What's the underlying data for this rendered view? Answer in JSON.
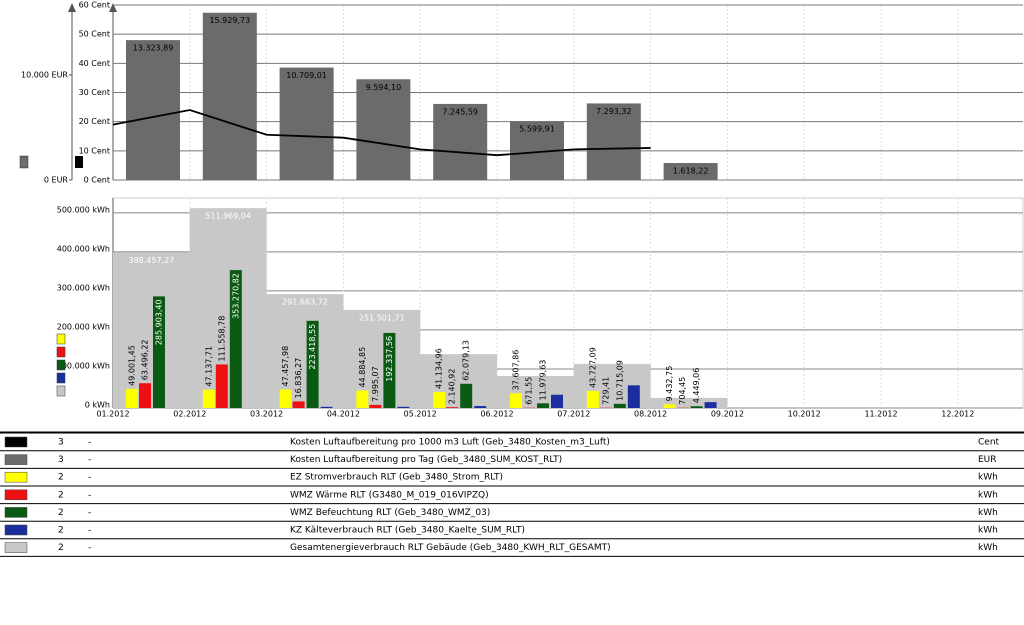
{
  "chart_data": [
    {
      "type": "bar",
      "ylim": [
        0,
        60
      ],
      "yticks": [
        {
          "value": 0,
          "label": "0 Cent"
        },
        {
          "value": 10,
          "label": "10 Cent"
        },
        {
          "value": 20,
          "label": "20 Cent"
        },
        {
          "value": 30,
          "label": "30 Cent"
        },
        {
          "value": 40,
          "label": "40 Cent"
        },
        {
          "value": 50,
          "label": "50 Cent"
        },
        {
          "value": 60,
          "label": "60 Cent"
        }
      ],
      "y2lim": [
        0,
        16667
      ],
      "y2ticks": [
        {
          "value": 0,
          "label": "0 EUR"
        },
        {
          "value": 10000,
          "label": "10.000 EUR"
        }
      ],
      "grid": true,
      "series": [
        {
          "name": "Kosten Luftaufbereitung pro Tag (Geb_3480_SUM_KOST_RLT)",
          "type": "bar",
          "axis": "y2",
          "color": "#6b6b6b",
          "values": [
            13323.89,
            15929.73,
            10709.01,
            9594.1,
            7245.59,
            5599.91,
            7293.32,
            1618.22
          ],
          "value_labels": [
            "13.323,89",
            "15.929,73",
            "10.709,01",
            "9.594,10",
            "7.245,59",
            "5.599,91",
            "7.293,32",
            "1.618,22"
          ]
        },
        {
          "name": "Kosten Luftaufbereitung pro 1000 m3 Luft (Geb_3480_Kosten_m3_Luft)",
          "type": "line",
          "color": "#000000",
          "values": [
            19,
            24,
            15.5,
            14.5,
            10.5,
            8.5,
            10.5,
            11
          ]
        }
      ]
    },
    {
      "type": "bar",
      "categories": [
        "01.2012",
        "02.2012",
        "03.2012",
        "04.2012",
        "05.2012",
        "06.2012",
        "07.2012",
        "08.2012",
        "09.2012",
        "10.2012",
        "11.2012",
        "12.2012"
      ],
      "ylim": [
        0,
        538000
      ],
      "yticks": [
        {
          "value": 0,
          "label": "0 kWh"
        },
        {
          "value": 100000,
          "label": "100.000 kWh"
        },
        {
          "value": 200000,
          "label": "200.000 kWh"
        },
        {
          "value": 300000,
          "label": "300.000 kWh"
        },
        {
          "value": 400000,
          "label": "400.000 kWh"
        },
        {
          "value": 500000,
          "label": "500.000 kWh"
        }
      ],
      "grid": true,
      "series": [
        {
          "name": "Gesamtenergieverbrauch RLT Gebäude (Geb_3480_KWH_RLT_GESAMT)",
          "color": "#c8c8c8",
          "values": [
            398457.27,
            511969.04,
            291683.72,
            251501.71,
            138000,
            82000,
            113000,
            26000,
            null,
            null,
            null,
            null
          ],
          "value_labels": [
            "398.457,27",
            "511.969,04",
            "291.683,72",
            "251.501,71",
            null,
            null,
            null,
            null,
            null,
            null,
            null,
            null
          ]
        },
        {
          "name": "EZ Stromverbrauch RLT (Geb_3480_Strom_RLT)",
          "color": "#ffff00",
          "values": [
            49001.45,
            47137.71,
            47457.98,
            44884.85,
            41134.96,
            37607.86,
            43727.09,
            9432.75,
            null,
            null,
            null,
            null
          ],
          "value_labels": [
            "49.001,45",
            "47.137,71",
            "47.457,98",
            "44.884,85",
            "41.134,96",
            "37.607,86",
            "43.727,09",
            "9.432,75",
            null,
            null,
            null,
            null
          ]
        },
        {
          "name": "WMZ Wärme RLT (G3480_M_019_016VIPZQ)",
          "color": "#ee1111",
          "values": [
            63496.22,
            111558.78,
            16836.27,
            7995.07,
            2140.92,
            671.55,
            729.41,
            704.45,
            null,
            null,
            null,
            null
          ],
          "value_labels": [
            "63.496,22",
            "111.558,78",
            "16.836,27",
            "7.995,07",
            "2.140,92",
            "671,55",
            "729,41",
            "704,45",
            null,
            null,
            null,
            null
          ]
        },
        {
          "name": "WMZ Befeuchtung RLT (Geb_3480_WMZ_03)",
          "color": "#0a5a14",
          "values": [
            285903.4,
            353270.82,
            223418.55,
            192337.56,
            62079.13,
            11979.63,
            10715.09,
            4449.06,
            null,
            null,
            null,
            null
          ],
          "value_labels": [
            "285.903,40",
            "353.270,82",
            "223.418,55",
            "192.337,56",
            "62.079,13",
            "11.979,63",
            "10.715,09",
            "4.449,06",
            null,
            null,
            null,
            null
          ]
        },
        {
          "name": "KZ Kälteverbrauch RLT (Geb_3480_Kaelte_SUM_RLT)",
          "color": "#1a2ea0",
          "values": [
            null,
            null,
            3000,
            3000,
            5000,
            34000,
            58000,
            15000,
            null,
            null,
            null,
            null
          ]
        }
      ]
    }
  ],
  "legend_table": {
    "rows": [
      {
        "axis": 3,
        "dash": "-",
        "unit": "Cent"
      },
      {
        "axis": 3,
        "dash": "-",
        "unit": "EUR"
      },
      {
        "axis": 2,
        "dash": "-",
        "unit": "kWh"
      },
      {
        "axis": 2,
        "dash": "-",
        "unit": "kWh"
      },
      {
        "axis": 2,
        "dash": "-",
        "unit": "kWh"
      },
      {
        "axis": 2,
        "dash": "-",
        "unit": "kWh"
      },
      {
        "axis": 2,
        "dash": "-",
        "unit": "kWh"
      }
    ]
  }
}
